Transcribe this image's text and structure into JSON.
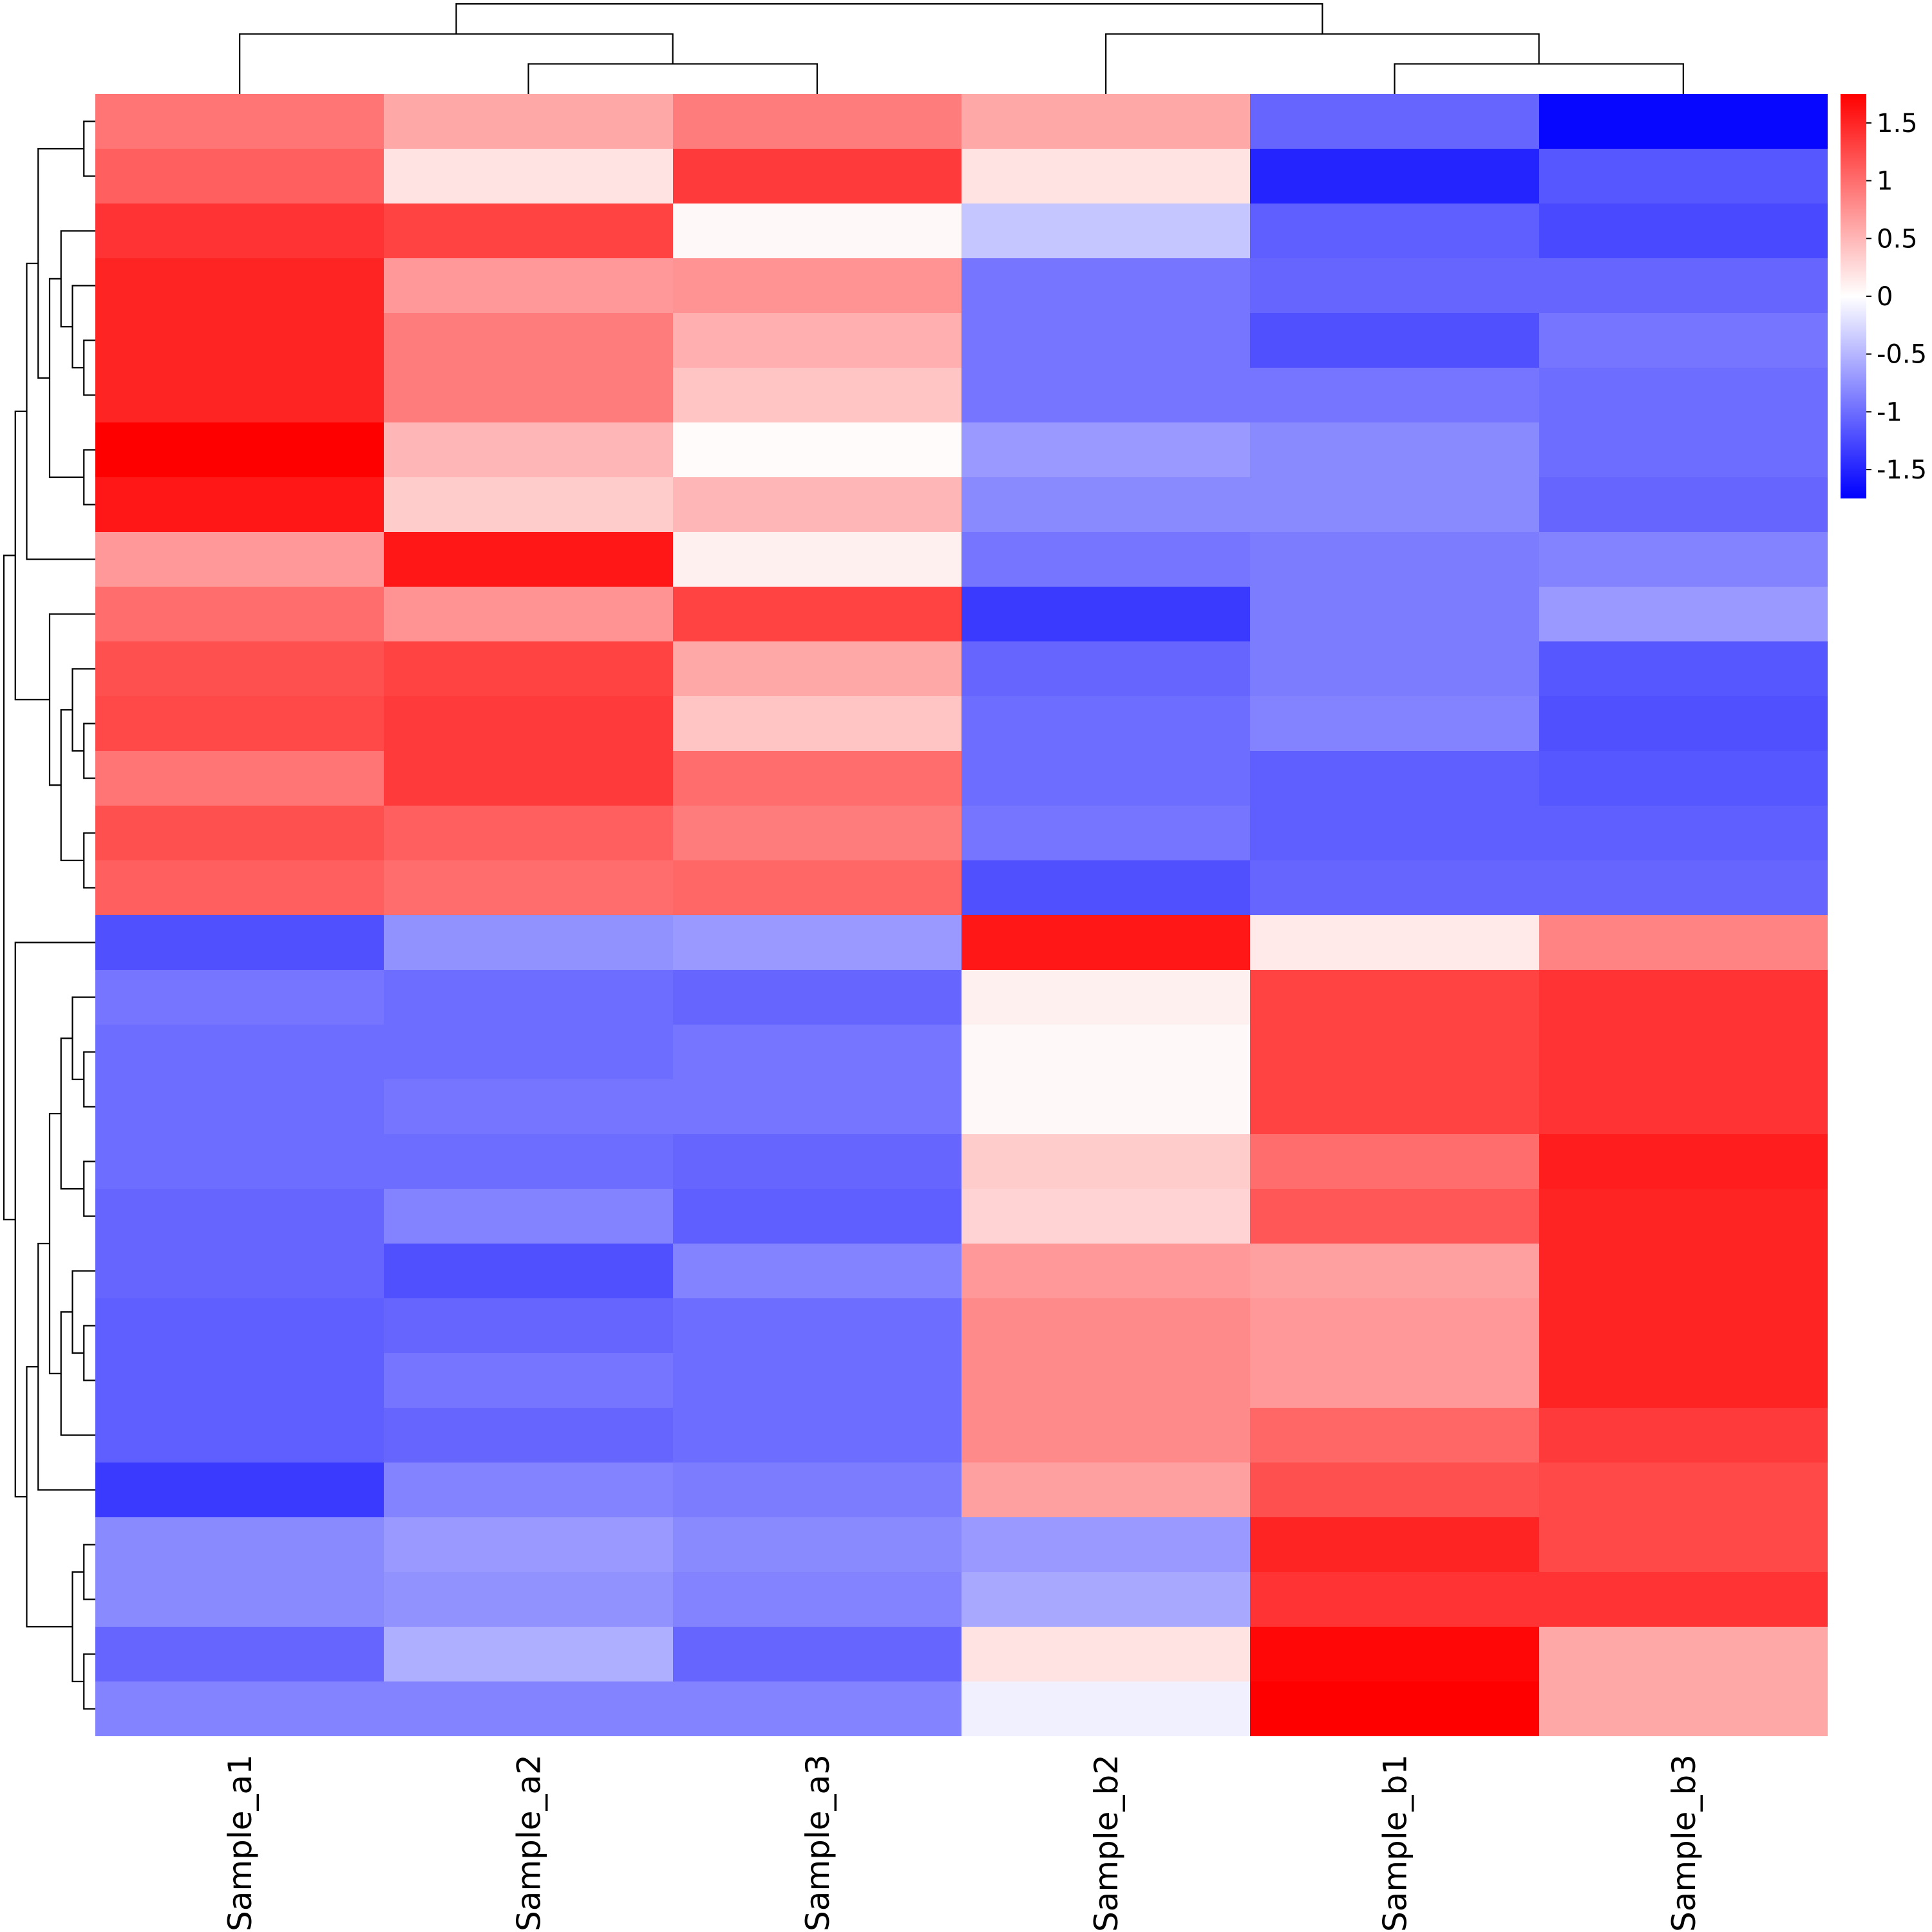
{
  "chart_data": {
    "type": "heatmap",
    "title": "",
    "columns": [
      "Sample_a1",
      "Sample_a2",
      "Sample_a3",
      "Sample_b2",
      "Sample_b1",
      "Sample_b3"
    ],
    "row_labels_visible": false,
    "values": [
      [
        0.95,
        0.6,
        0.9,
        0.6,
        -1.05,
        -1.7
      ],
      [
        1.1,
        0.2,
        1.35,
        0.2,
        -1.5,
        -1.15
      ],
      [
        1.4,
        1.3,
        0.05,
        -0.4,
        -1.1,
        -1.25
      ],
      [
        1.5,
        0.7,
        0.75,
        -0.95,
        -1.05,
        -1.05
      ],
      [
        1.5,
        0.9,
        0.55,
        -0.95,
        -1.2,
        -0.95
      ],
      [
        1.5,
        0.9,
        0.4,
        -0.95,
        -0.95,
        -1.0
      ],
      [
        1.75,
        0.5,
        0.03,
        -0.7,
        -0.8,
        -1.0
      ],
      [
        1.6,
        0.35,
        0.5,
        -0.8,
        -0.8,
        -1.05
      ],
      [
        0.7,
        1.6,
        0.1,
        -0.95,
        -0.9,
        -0.85
      ],
      [
        1.0,
        0.75,
        1.3,
        -1.35,
        -0.9,
        -0.7
      ],
      [
        1.2,
        1.3,
        0.6,
        -1.05,
        -0.9,
        -1.15
      ],
      [
        1.25,
        1.35,
        0.4,
        -1.0,
        -0.85,
        -1.2
      ],
      [
        0.95,
        1.35,
        1.0,
        -1.0,
        -1.1,
        -1.15
      ],
      [
        1.2,
        1.1,
        0.9,
        -0.95,
        -1.1,
        -1.1
      ],
      [
        1.1,
        1.0,
        1.05,
        -1.2,
        -1.05,
        -1.05
      ],
      [
        -1.2,
        -0.75,
        -0.7,
        1.6,
        0.15,
        0.85
      ],
      [
        -0.95,
        -1.0,
        -1.05,
        0.1,
        1.3,
        1.4
      ],
      [
        -1.0,
        -1.0,
        -0.95,
        0.05,
        1.3,
        1.4
      ],
      [
        -1.0,
        -0.95,
        -0.95,
        0.05,
        1.3,
        1.4
      ],
      [
        -1.0,
        -1.0,
        -1.05,
        0.35,
        1.0,
        1.55
      ],
      [
        -1.05,
        -0.85,
        -1.1,
        0.3,
        1.15,
        1.5
      ],
      [
        -1.05,
        -1.2,
        -0.85,
        0.7,
        0.65,
        1.5
      ],
      [
        -1.1,
        -1.05,
        -1.0,
        0.8,
        0.7,
        1.5
      ],
      [
        -1.1,
        -0.95,
        -1.0,
        0.8,
        0.7,
        1.5
      ],
      [
        -1.1,
        -1.05,
        -1.0,
        0.8,
        1.05,
        1.35
      ],
      [
        -1.35,
        -0.85,
        -0.9,
        0.65,
        1.2,
        1.25
      ],
      [
        -0.8,
        -0.7,
        -0.8,
        -0.7,
        1.5,
        1.25
      ],
      [
        -0.8,
        -0.75,
        -0.85,
        -0.6,
        1.4,
        1.4
      ],
      [
        -1.05,
        -0.55,
        -1.05,
        0.2,
        1.7,
        0.6
      ],
      [
        -0.85,
        -0.85,
        -0.85,
        -0.1,
        1.75,
        0.6
      ]
    ],
    "color_scale": {
      "min": -1.75,
      "max": 1.75,
      "low_color": "#0000ff",
      "mid_color": "#ffffff",
      "high_color": "#ff0000",
      "ticks": [
        1.5,
        1,
        0.5,
        0,
        -0.5,
        -1,
        -1.5
      ],
      "tick_labels": [
        "1.5",
        "1",
        "0.5",
        "0",
        "-0.5",
        "-1",
        "-1.5"
      ]
    },
    "column_dendrogram": {
      "merges": [
        [
          2,
          3
        ],
        [
          1,
          7
        ],
        [
          5,
          6
        ],
        [
          4,
          9
        ],
        [
          8,
          10
        ]
      ]
    },
    "row_dendrogram": {
      "merges": [
        [
          5,
          6
        ],
        [
          4,
          31
        ],
        [
          3,
          32
        ],
        [
          7,
          8
        ],
        [
          33,
          34
        ],
        [
          1,
          2
        ],
        [
          35,
          36
        ],
        [
          9,
          37
        ],
        [
          12,
          13
        ],
        [
          11,
          39
        ],
        [
          14,
          15
        ],
        [
          40,
          41
        ],
        [
          10,
          42
        ],
        [
          38,
          43
        ],
        [
          18,
          19
        ],
        [
          17,
          45
        ],
        [
          20,
          21
        ],
        [
          46,
          47
        ],
        [
          23,
          24
        ],
        [
          22,
          49
        ],
        [
          25,
          50
        ],
        [
          48,
          51
        ],
        [
          26,
          52
        ],
        [
          27,
          28
        ],
        [
          29,
          30
        ],
        [
          54,
          55
        ],
        [
          53,
          56
        ],
        [
          16,
          57
        ],
        [
          44,
          58
        ]
      ]
    }
  }
}
